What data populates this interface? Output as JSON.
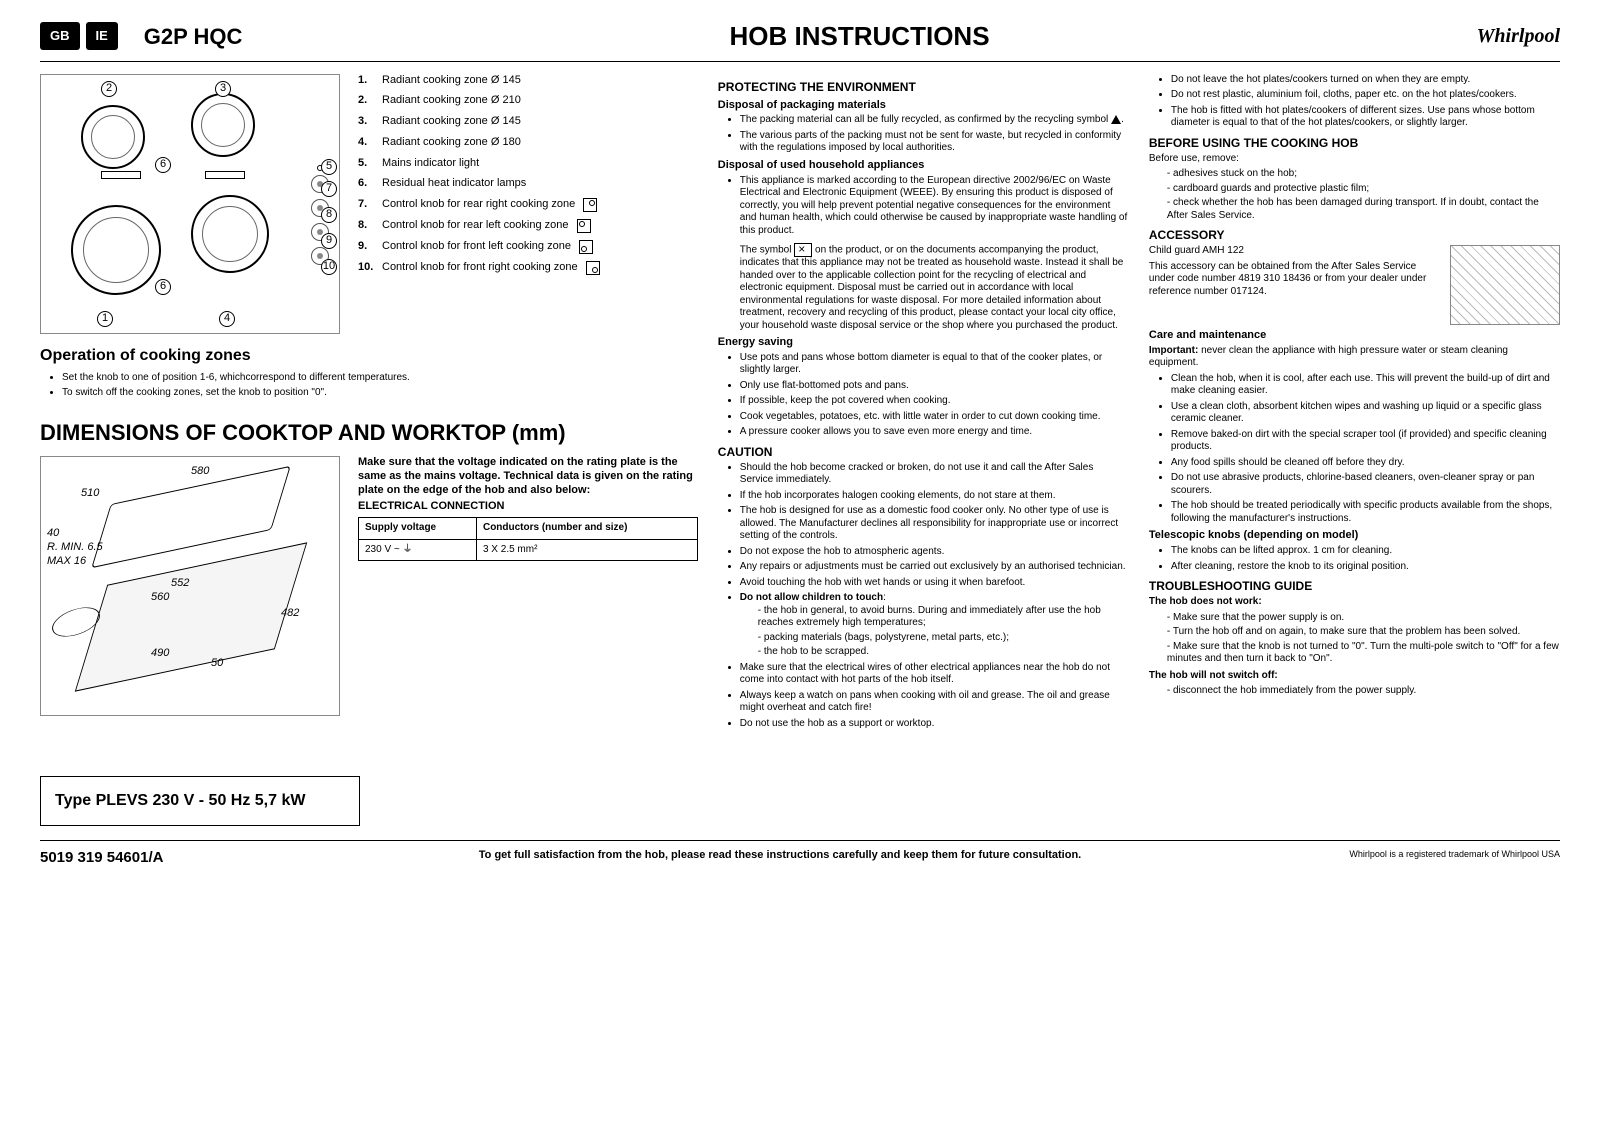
{
  "header": {
    "badges": [
      "GB",
      "IE"
    ],
    "model": "G2P HQC",
    "title": "HOB INSTRUCTIONS",
    "brand": "Whirlpool"
  },
  "zones": {
    "items": [
      {
        "n": "1.",
        "t": "Radiant cooking zone Ø 145",
        "icon": ""
      },
      {
        "n": "2.",
        "t": "Radiant cooking zone Ø 210",
        "icon": ""
      },
      {
        "n": "3.",
        "t": "Radiant cooking zone Ø 145",
        "icon": ""
      },
      {
        "n": "4.",
        "t": "Radiant cooking zone Ø 180",
        "icon": ""
      },
      {
        "n": "5.",
        "t": "Mains indicator light",
        "icon": ""
      },
      {
        "n": "6.",
        "t": "Residual heat indicator lamps",
        "icon": ""
      },
      {
        "n": "7.",
        "t": "Control knob for rear right cooking zone",
        "icon": "tr"
      },
      {
        "n": "8.",
        "t": "Control knob for rear left cooking zone",
        "icon": "tl"
      },
      {
        "n": "9.",
        "t": "Control knob for front left cooking zone",
        "icon": "bl"
      },
      {
        "n": "10.",
        "t": "Control knob for front right cooking zone",
        "icon": "br"
      }
    ]
  },
  "operation": {
    "title": "Operation of cooking zones",
    "items": [
      "Set the knob to one of position 1-6, whichcorrespond to different temperatures.",
      "To switch off the cooking zones, set the knob to position \"0\"."
    ]
  },
  "dimensions": {
    "title": "DIMENSIONS OF COOKTOP AND WORKTOP (mm)",
    "labels": {
      "w": "580",
      "d": "510",
      "h": "40",
      "rmin": "R. MIN. 6.5",
      "max": "MAX 16",
      "cw": "552",
      "cw2": "560",
      "cd": "482",
      "cd2": "490",
      "th": "50"
    },
    "note": "Make sure that the voltage indicated on the rating plate is the same as the mains voltage. Technical data is given on the rating plate on the edge of the hob and also below:",
    "elec_title": "ELECTRICAL CONNECTION",
    "table": {
      "h1": "Supply voltage",
      "h2": "Conductors (number and size)",
      "r1c1": "230 V ~ ⏚",
      "r1c2": "3 X 2.5 mm²"
    }
  },
  "type_box": "Type PLEVS 230 V - 50 Hz  5,7 kW",
  "col2": {
    "h1": "PROTECTING THE ENVIRONMENT",
    "s1t": "Disposal of packaging materials",
    "s1": [
      "The packing material can all be fully recycled, as confirmed by the recycling symbol ",
      "The various parts of the packing must not be sent for waste, but recycled in conformity with the regulations imposed by local authorities."
    ],
    "s2t": "Disposal of used household appliances",
    "s2": [
      "This appliance is marked according to the European directive 2002/96/EC on Waste Electrical and Electronic Equipment (WEEE). By ensuring this product is disposed of correctly, you will help prevent potential negative consequences for the environment and human health, which could otherwise be caused by inappropriate waste handling of this product."
    ],
    "s2p": "The symbol  on the product, or on the documents accompanying the product, indicates that this appliance may not be treated as household waste. Instead it shall be handed over to the applicable collection point for the recycling of electrical and electronic equipment. Disposal must be carried out in accordance with local environmental regulations for waste disposal. For more detailed information about treatment, recovery and recycling of this product, please contact your local city office, your household waste disposal service or the shop where you purchased the product.",
    "s3t": "Energy saving",
    "s3": [
      "Use pots and pans whose bottom diameter is equal to that of the cooker plates, or slightly larger.",
      "Only use flat-bottomed pots and pans.",
      "If possible, keep the pot covered when cooking.",
      "Cook vegetables, potatoes, etc. with little water in order to cut down cooking time.",
      "A pressure cooker allows you to save even more energy and time."
    ],
    "h2": "CAUTION",
    "c": [
      "Should the hob become cracked or broken, do not use it and call the After Sales Service immediately.",
      "If the hob incorporates halogen cooking elements, do not stare at them.",
      "The hob is designed for use as a domestic food cooker only. No other type of use is allowed. The Manufacturer declines all responsibility for inappropriate use or incorrect setting of the controls.",
      "Do not expose the hob to atmospheric agents.",
      "Any repairs or adjustments must be carried out exclusively by an authorised technician.",
      "Avoid touching the hob with wet hands or using it when barefoot."
    ],
    "cdna_t": "Do not allow children to touch",
    "cdna": [
      "the hob in general, to avoid burns. During and immediately after use the hob reaches extremely high temperatures;",
      "packing materials (bags, polystyrene, metal parts, etc.);",
      "the hob to be scrapped."
    ],
    "c2": [
      "Make sure that the electrical wires of other electrical appliances near the hob do not come into contact with hot parts of the hob itself.",
      "Always keep a watch on pans when cooking with oil and grease. The oil and grease might overheat and catch fire!",
      "Do not use the hob as a support or worktop."
    ]
  },
  "col3": {
    "top": [
      "Do not leave the hot plates/cookers turned on when they are empty.",
      "Do not rest plastic, aluminium foil, cloths, paper etc. on the hot plates/cookers.",
      "The hob is fitted with hot plates/cookers of different sizes. Use pans whose bottom diameter is equal to that of the hot plates/cookers, or slightly larger."
    ],
    "h1": "BEFORE USING THE COOKING HOB",
    "h1p": "Before use, remove:",
    "h1l": [
      "adhesives stuck on the hob;",
      "cardboard guards and protective plastic film;",
      "check whether the hob has been damaged during transport. If in doubt, contact the After Sales Service."
    ],
    "h2": "ACCESSORY",
    "acc1": "Child guard AMH 122",
    "acc2": "This accessory can be obtained from the After Sales Service under code number 4819 310 18436 or from your dealer under reference number 017124.",
    "h3": "Care and maintenance",
    "h3p": "Important: never clean the appliance with high pressure water or steam cleaning equipment.",
    "h3l": [
      "Clean the hob, when it is cool, after each use. This will prevent the build-up of dirt and make cleaning easier.",
      "Use a clean cloth, absorbent kitchen wipes and washing up liquid or a specific glass ceramic cleaner.",
      "Remove baked-on dirt with the special scraper tool (if provided) and specific cleaning products.",
      "Any food spills should be cleaned off before they dry.",
      "Do not use abrasive products, chlorine-based cleaners, oven-cleaner spray or pan scourers.",
      "The hob should be treated periodically with specific products available from the shops, following the manufacturer's instructions."
    ],
    "h4": "Telescopic knobs (depending on model)",
    "h4l": [
      "The knobs can be lifted approx. 1 cm for cleaning.",
      "After cleaning, restore the knob to its original position."
    ],
    "h5": "TROUBLESHOOTING GUIDE",
    "t1": "The hob does not work:",
    "t1l": [
      "Make sure that the power supply is on.",
      "Turn the hob off and on again, to make sure that the problem has been solved.",
      "Make sure that the knob is not turned to \"0\". Turn the multi-pole switch to \"Off\" for a few minutes and then turn it back to \"On\"."
    ],
    "t2": "The hob will not switch off:",
    "t2l": [
      "disconnect the hob immediately from the power supply."
    ]
  },
  "footer": {
    "num": "5019 319 54601/A",
    "msg": "To get full satisfaction from the hob, please read these instructions carefully and keep them for future consultation.",
    "trade": "Whirlpool is a registered trademark of Whirlpool USA"
  }
}
